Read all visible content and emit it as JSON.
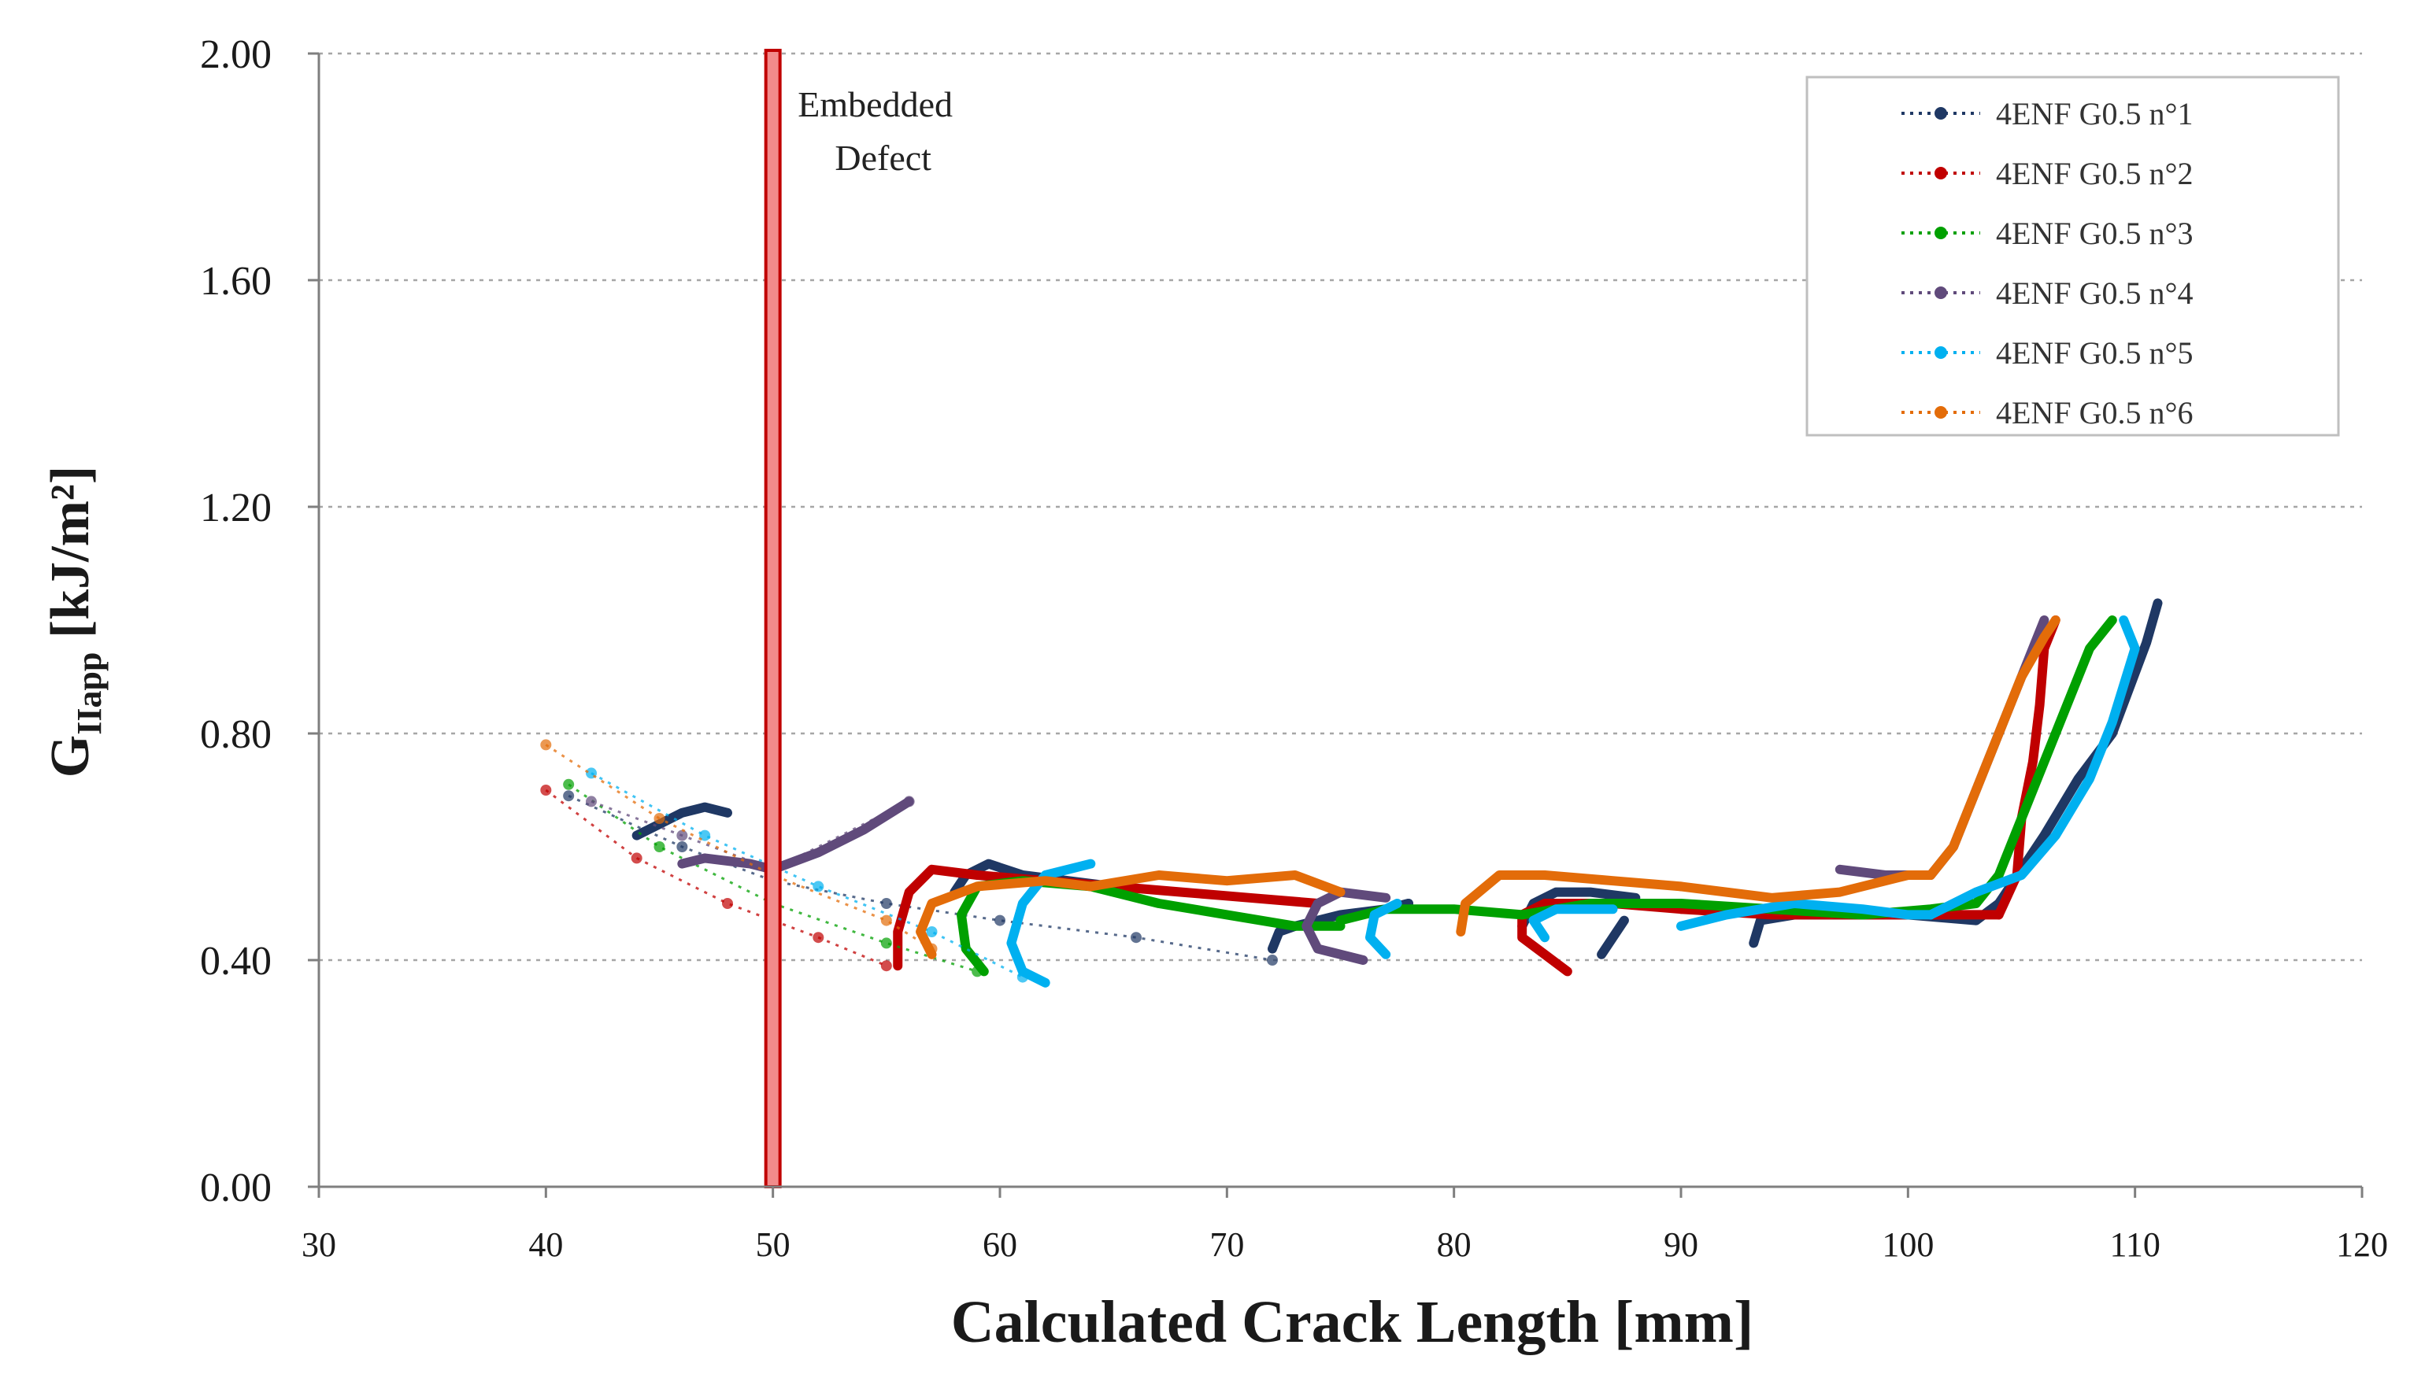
{
  "chart_data": {
    "type": "line",
    "title": "",
    "xlabel": "Calculated Crack Length [mm]",
    "ylabel_main": "G",
    "ylabel_sub": "IIapp",
    "ylabel_unit": " [kJ/m²]",
    "xlim": [
      30,
      120
    ],
    "ylim": [
      0,
      2
    ],
    "xticks": [
      30,
      40,
      50,
      60,
      70,
      80,
      90,
      100,
      110,
      120
    ],
    "xtick_labels": [
      "30",
      "40",
      "50",
      "60",
      "70",
      "80",
      "90",
      "100",
      "110",
      "120"
    ],
    "yticks": [
      0,
      0.4,
      0.8,
      1.2,
      1.6,
      2.0
    ],
    "ytick_labels": [
      "0.00",
      "0.40",
      "0.80",
      "1.20",
      "1.60",
      "2.00"
    ],
    "grid": "horizontal-dotted",
    "legend_position": "top-right",
    "annotation": {
      "label_line1": "Embedded",
      "label_line2": "Defect",
      "x": 50
    },
    "series": [
      {
        "name": "4ENF G0.5 n°1",
        "color": "#1f3864",
        "trend": [
          [
            41,
            0.69
          ],
          [
            46,
            0.6
          ],
          [
            50,
            0.54
          ],
          [
            55,
            0.5
          ],
          [
            60,
            0.47
          ],
          [
            66,
            0.44
          ],
          [
            72,
            0.4
          ]
        ],
        "segments": [
          [
            [
              44,
              0.62
            ],
            [
              45,
              0.64
            ],
            [
              46,
              0.66
            ],
            [
              47,
              0.67
            ],
            [
              48,
              0.66
            ]
          ],
          [
            [
              58,
              0.52
            ],
            [
              58.5,
              0.55
            ],
            [
              59.5,
              0.57
            ],
            [
              61,
              0.55
            ],
            [
              63,
              0.54
            ],
            [
              65,
              0.53
            ]
          ],
          [
            [
              72,
              0.42
            ],
            [
              72.3,
              0.45
            ],
            [
              73,
              0.46
            ],
            [
              75,
              0.48
            ],
            [
              77,
              0.49
            ],
            [
              78,
              0.5
            ]
          ],
          [
            [
              77,
              0.49
            ],
            [
              78,
              0.5
            ]
          ],
          [
            [
              83,
              0.46
            ],
            [
              83.5,
              0.5
            ],
            [
              84.5,
              0.52
            ],
            [
              86,
              0.52
            ],
            [
              88,
              0.51
            ]
          ],
          [
            [
              86.5,
              0.41
            ],
            [
              87,
              0.44
            ],
            [
              87.5,
              0.47
            ]
          ],
          [
            [
              93.2,
              0.43
            ],
            [
              93.5,
              0.47
            ],
            [
              95,
              0.48
            ],
            [
              97,
              0.48
            ],
            [
              100,
              0.48
            ],
            [
              103,
              0.47
            ]
          ],
          [
            [
              103,
              0.47
            ],
            [
              104,
              0.5
            ],
            [
              105,
              0.56
            ],
            [
              106,
              0.62
            ],
            [
              107.5,
              0.72
            ],
            [
              109,
              0.8
            ],
            [
              110.5,
              0.96
            ],
            [
              111,
              1.03
            ]
          ]
        ]
      },
      {
        "name": "4ENF G0.5 n°2",
        "color": "#c00000",
        "trend": [
          [
            40,
            0.7
          ],
          [
            44,
            0.58
          ],
          [
            48,
            0.5
          ],
          [
            52,
            0.44
          ],
          [
            55,
            0.39
          ]
        ],
        "segments": [
          [
            [
              55.5,
              0.39
            ],
            [
              55.5,
              0.45
            ],
            [
              56,
              0.52
            ],
            [
              57,
              0.56
            ],
            [
              59,
              0.55
            ],
            [
              62,
              0.54
            ]
          ],
          [
            [
              62,
              0.54
            ],
            [
              65,
              0.53
            ],
            [
              68,
              0.52
            ],
            [
              71,
              0.51
            ],
            [
              74,
              0.5
            ]
          ],
          [
            [
              85,
              0.38
            ],
            [
              84,
              0.41
            ],
            [
              83,
              0.44
            ],
            [
              83,
              0.48
            ],
            [
              84,
              0.5
            ],
            [
              87,
              0.5
            ],
            [
              90,
              0.49
            ]
          ],
          [
            [
              90,
              0.49
            ],
            [
              94,
              0.48
            ],
            [
              98,
              0.48
            ],
            [
              101,
              0.48
            ],
            [
              104,
              0.48
            ]
          ],
          [
            [
              104,
              0.48
            ],
            [
              104.8,
              0.55
            ],
            [
              105,
              0.65
            ],
            [
              105.5,
              0.75
            ],
            [
              105.8,
              0.85
            ],
            [
              106,
              0.95
            ],
            [
              106.5,
              1.0
            ]
          ]
        ]
      },
      {
        "name": "4ENF G0.5 n°3",
        "color": "#00a000",
        "trend": [
          [
            41,
            0.71
          ],
          [
            45,
            0.6
          ],
          [
            50,
            0.5
          ],
          [
            55,
            0.43
          ],
          [
            59,
            0.38
          ]
        ],
        "segments": [
          [
            [
              59.3,
              0.38
            ],
            [
              58.5,
              0.42
            ],
            [
              58.3,
              0.48
            ],
            [
              59,
              0.53
            ],
            [
              61,
              0.54
            ],
            [
              64,
              0.53
            ]
          ],
          [
            [
              64,
              0.53
            ],
            [
              67,
              0.5
            ],
            [
              70,
              0.48
            ],
            [
              73,
              0.46
            ],
            [
              75,
              0.46
            ]
          ],
          [
            [
              75,
              0.47
            ],
            [
              77,
              0.49
            ],
            [
              80,
              0.49
            ],
            [
              83,
              0.48
            ]
          ],
          [
            [
              83,
              0.48
            ],
            [
              86,
              0.5
            ],
            [
              90,
              0.5
            ],
            [
              94,
              0.49
            ],
            [
              98,
              0.48
            ]
          ],
          [
            [
              98,
              0.48
            ],
            [
              101,
              0.49
            ],
            [
              103,
              0.5
            ],
            [
              104,
              0.55
            ],
            [
              105,
              0.65
            ],
            [
              106,
              0.75
            ],
            [
              107,
              0.85
            ],
            [
              108,
              0.95
            ],
            [
              109,
              1.0
            ]
          ]
        ]
      },
      {
        "name": "4ENF G0.5 n°4",
        "color": "#604a7b",
        "trend": [
          [
            42,
            0.68
          ],
          [
            46,
            0.62
          ],
          [
            50,
            0.56
          ],
          [
            56,
            0.68
          ]
        ],
        "segments": [
          [
            [
              46,
              0.57
            ],
            [
              47,
              0.58
            ],
            [
              49,
              0.57
            ],
            [
              50,
              0.56
            ],
            [
              52,
              0.59
            ],
            [
              54,
              0.63
            ],
            [
              56,
              0.68
            ]
          ],
          [
            [
              76,
              0.4
            ],
            [
              74,
              0.42
            ],
            [
              73.5,
              0.46
            ],
            [
              74,
              0.5
            ],
            [
              75,
              0.52
            ],
            [
              77,
              0.51
            ]
          ],
          [
            [
              97,
              0.56
            ],
            [
              99,
              0.55
            ],
            [
              101,
              0.55
            ],
            [
              102,
              0.6
            ],
            [
              103,
              0.7
            ],
            [
              104,
              0.8
            ],
            [
              105,
              0.9
            ],
            [
              106,
              1.0
            ]
          ]
        ]
      },
      {
        "name": "4ENF G0.5 n°5",
        "color": "#00b0f0",
        "trend": [
          [
            42,
            0.73
          ],
          [
            47,
            0.62
          ],
          [
            52,
            0.53
          ],
          [
            57,
            0.45
          ],
          [
            61,
            0.37
          ]
        ],
        "segments": [
          [
            [
              62,
              0.36
            ],
            [
              61,
              0.38
            ],
            [
              60.5,
              0.43
            ],
            [
              61,
              0.5
            ],
            [
              62,
              0.55
            ],
            [
              64,
              0.57
            ]
          ],
          [
            [
              77,
              0.41
            ],
            [
              76.3,
              0.44
            ],
            [
              76.5,
              0.48
            ],
            [
              77.5,
              0.5
            ]
          ],
          [
            [
              84,
              0.44
            ],
            [
              83.5,
              0.47
            ],
            [
              84.5,
              0.49
            ],
            [
              87,
              0.49
            ]
          ],
          [
            [
              90,
              0.46
            ],
            [
              92,
              0.48
            ],
            [
              95,
              0.5
            ],
            [
              98,
              0.49
            ],
            [
              100,
              0.48
            ],
            [
              101,
              0.48
            ]
          ],
          [
            [
              101,
              0.48
            ],
            [
              103,
              0.52
            ],
            [
              105,
              0.55
            ],
            [
              106.5,
              0.62
            ],
            [
              108,
              0.72
            ],
            [
              109,
              0.82
            ],
            [
              110,
              0.95
            ],
            [
              109.5,
              1.0
            ]
          ]
        ]
      },
      {
        "name": "4ENF G0.5 n°6",
        "color": "#e36c09",
        "trend": [
          [
            40,
            0.78
          ],
          [
            45,
            0.65
          ],
          [
            50,
            0.55
          ],
          [
            55,
            0.47
          ],
          [
            57,
            0.42
          ]
        ],
        "segments": [
          [
            [
              57,
              0.41
            ],
            [
              56.5,
              0.45
            ],
            [
              57,
              0.5
            ],
            [
              59,
              0.53
            ],
            [
              62,
              0.54
            ],
            [
              64,
              0.53
            ]
          ],
          [
            [
              64,
              0.53
            ],
            [
              67,
              0.55
            ],
            [
              70,
              0.54
            ],
            [
              73,
              0.55
            ],
            [
              75,
              0.52
            ]
          ],
          [
            [
              80.3,
              0.45
            ],
            [
              80.5,
              0.5
            ],
            [
              82,
              0.55
            ],
            [
              84,
              0.55
            ],
            [
              87,
              0.54
            ],
            [
              90,
              0.53
            ]
          ],
          [
            [
              90,
              0.53
            ],
            [
              94,
              0.51
            ],
            [
              97,
              0.52
            ],
            [
              100,
              0.55
            ],
            [
              101,
              0.55
            ]
          ],
          [
            [
              101,
              0.55
            ],
            [
              102,
              0.6
            ],
            [
              103,
              0.7
            ],
            [
              104,
              0.8
            ],
            [
              105,
              0.9
            ],
            [
              106,
              0.97
            ],
            [
              106.5,
              1.0
            ]
          ]
        ]
      }
    ]
  }
}
